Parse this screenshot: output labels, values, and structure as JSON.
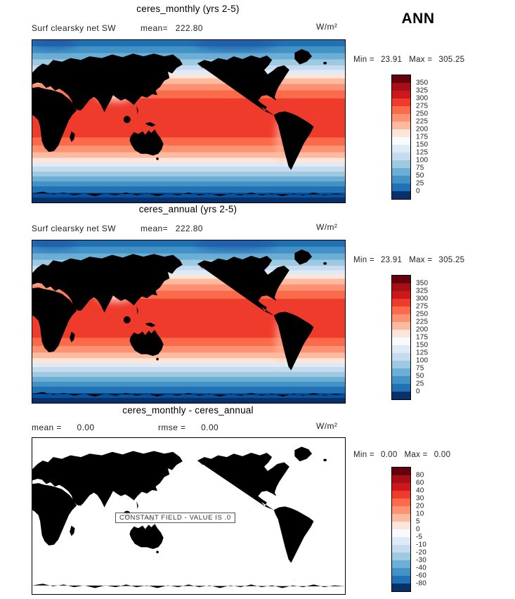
{
  "ann_label": "ANN",
  "panels": [
    {
      "title": "ceres_monthly (yrs 2-5)",
      "field": "Surf clearsky net SW",
      "mean_label": "mean=",
      "mean_value": "222.80",
      "units": "W/m²",
      "min_label": "Min =",
      "min_value": "23.91",
      "max_label": "Max =",
      "max_value": "305.25"
    },
    {
      "title": "ceres_annual (yrs 2-5)",
      "field": "Surf clearsky net SW",
      "mean_label": "mean=",
      "mean_value": "222.80",
      "units": "W/m²",
      "min_label": "Min =",
      "min_value": "23.91",
      "max_label": "Max =",
      "max_value": "305.25"
    },
    {
      "title": "ceres_monthly - ceres_annual",
      "mean_label": "mean =",
      "mean_value": "0.00",
      "rmse_label": "rmse =",
      "rmse_value": "0.00",
      "units": "W/m²",
      "min_label": "Min =",
      "min_value": "0.00",
      "max_label": "Max =",
      "max_value": "0.00",
      "constant_field_text": "CONSTANT FIELD - VALUE IS .0"
    }
  ],
  "colorbars": {
    "main": {
      "labels": [
        "350",
        "325",
        "300",
        "275",
        "250",
        "225",
        "200",
        "175",
        "150",
        "125",
        "100",
        "75",
        "50",
        "25",
        "0"
      ],
      "colors": [
        "#67000d",
        "#a50f15",
        "#cb181d",
        "#ef3b2c",
        "#fb6a4a",
        "#fc9272",
        "#fcbba1",
        "#fee5d9",
        "#f7fbff",
        "#deebf7",
        "#c6dbef",
        "#9ecae1",
        "#6baed6",
        "#4292c6",
        "#2171b5",
        "#08306b"
      ]
    },
    "diff": {
      "labels": [
        "80",
        "60",
        "40",
        "30",
        "20",
        "10",
        "5",
        "0",
        "-5",
        "-10",
        "-20",
        "-30",
        "-40",
        "-60",
        "-80"
      ],
      "colors": [
        "#67000d",
        "#a50f15",
        "#cb181d",
        "#ef3b2c",
        "#fb6a4a",
        "#fc9272",
        "#fcbba1",
        "#fee5d9",
        "#f7fbff",
        "#deebf7",
        "#c6dbef",
        "#9ecae1",
        "#6baed6",
        "#4292c6",
        "#2171b5",
        "#08306b"
      ]
    }
  },
  "chart_data": [
    {
      "type": "heatmap",
      "title": "ceres_monthly (yrs 2-5)",
      "subtitle": "Surf clearsky net SW",
      "season": "ANN",
      "units": "W/m²",
      "mean": 222.8,
      "min": 23.91,
      "max": 305.25,
      "levels": [
        0,
        25,
        50,
        75,
        100,
        125,
        150,
        175,
        200,
        225,
        250,
        275,
        300,
        325,
        350
      ],
      "palette_low_to_high": [
        "#08306b",
        "#2171b5",
        "#4292c6",
        "#6baed6",
        "#9ecae1",
        "#c6dbef",
        "#deebf7",
        "#f7fbff",
        "#fee5d9",
        "#fcbba1",
        "#fc9272",
        "#fb6a4a",
        "#ef3b2c",
        "#cb181d",
        "#a50f15",
        "#67000d"
      ],
      "projection": "global cylindrical, lon 0-360E, lat 90N to 90S",
      "pattern": "zonally banded field: maxima ~275-305 W/m2 across the tropics and subtropics, decreasing poleward through ~100-200 W/m2 at mid-latitudes to ~0-50 W/m2 at both poles"
    },
    {
      "type": "heatmap",
      "title": "ceres_annual (yrs 2-5)",
      "subtitle": "Surf clearsky net SW",
      "season": "ANN",
      "units": "W/m²",
      "mean": 222.8,
      "min": 23.91,
      "max": 305.25,
      "levels": [
        0,
        25,
        50,
        75,
        100,
        125,
        150,
        175,
        200,
        225,
        250,
        275,
        300,
        325,
        350
      ],
      "palette_low_to_high": [
        "#08306b",
        "#2171b5",
        "#4292c6",
        "#6baed6",
        "#9ecae1",
        "#c6dbef",
        "#deebf7",
        "#f7fbff",
        "#fee5d9",
        "#fcbba1",
        "#fc9272",
        "#fb6a4a",
        "#ef3b2c",
        "#cb181d",
        "#a50f15",
        "#67000d"
      ],
      "projection": "global cylindrical, lon 0-360E, lat 90N to 90S",
      "pattern": "identical zonally banded field to ceres_monthly panel"
    },
    {
      "type": "heatmap",
      "title": "ceres_monthly - ceres_annual",
      "units": "W/m²",
      "mean": 0.0,
      "rmse": 0.0,
      "min": 0.0,
      "max": 0.0,
      "levels": [
        -80,
        -60,
        -40,
        -30,
        -20,
        -10,
        -5,
        0,
        5,
        10,
        20,
        30,
        40,
        60,
        80
      ],
      "annotation": "CONSTANT FIELD - VALUE IS .0",
      "pattern": "uniform zero-difference field; map is blank with coastlines only"
    }
  ]
}
